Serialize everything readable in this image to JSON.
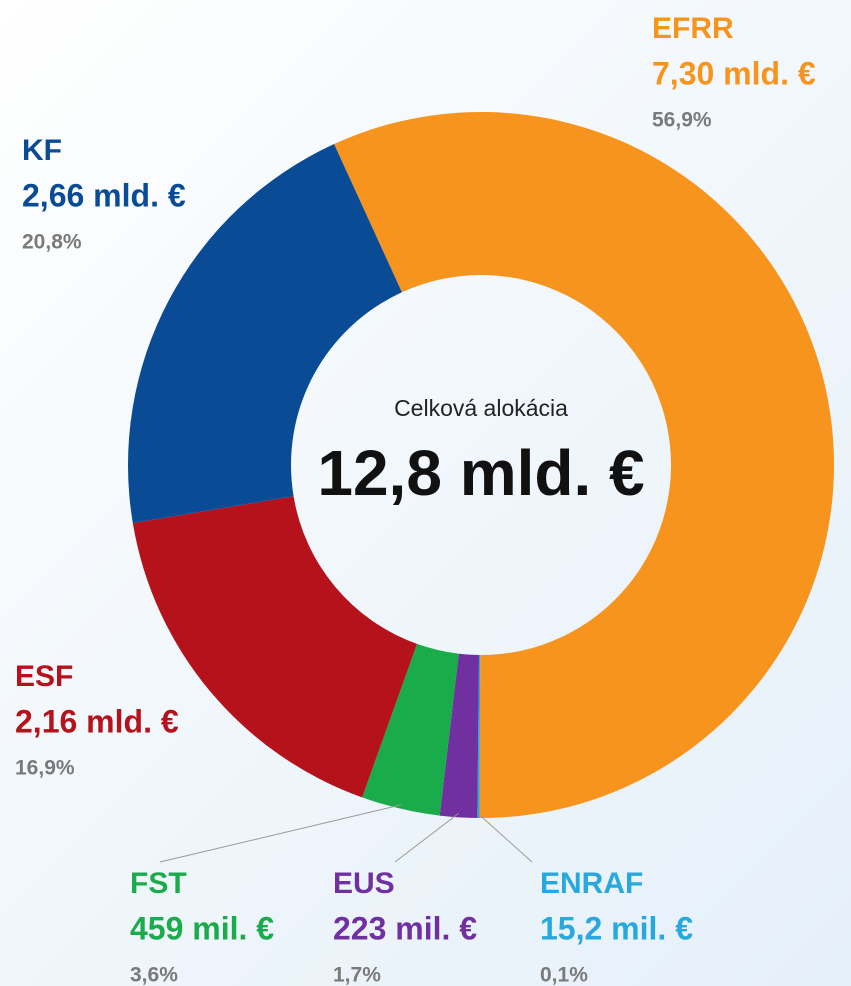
{
  "chart_data": {
    "type": "donut",
    "center_label": "Celková alokácia",
    "total_label": "12,8 mld. €",
    "categories": [
      "EFRR",
      "ENRAF",
      "EUS",
      "FST",
      "ESF",
      "KF"
    ],
    "amounts": [
      "7,30 mld. €",
      "15,2 mil. €",
      "223 mil. €",
      "459 mil. €",
      "2,16 mld. €",
      "2,66 mld. €"
    ],
    "values": [
      56.9,
      0.1,
      1.7,
      3.6,
      16.9,
      20.8
    ],
    "value_labels": [
      "56,9%",
      "0,1%",
      "1,7%",
      "3,6%",
      "16,9%",
      "20,8%"
    ],
    "colors": [
      "#f7941d",
      "#29a8e0",
      "#7030a0",
      "#1aab4b",
      "#b5121b",
      "#0a4b96"
    ]
  }
}
